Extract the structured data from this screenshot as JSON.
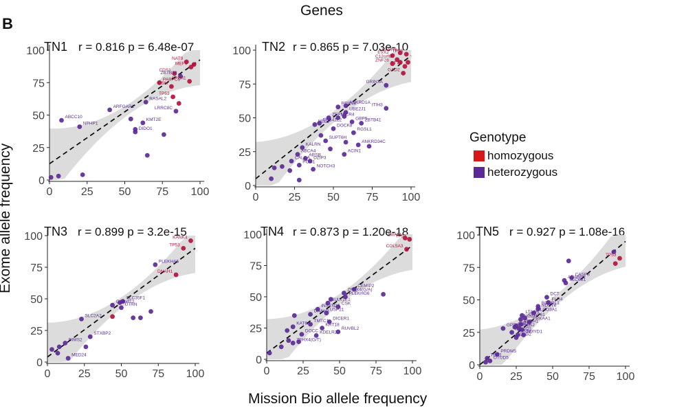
{
  "figure": {
    "panel_letter": "B",
    "title": "Genes",
    "xlabel": "Mission Bio allele frequency",
    "ylabel": "Exome allele frequency",
    "legend": {
      "title": "Genotype",
      "items": [
        {
          "label": "homozygous",
          "color": "#d7191c"
        },
        {
          "label": "heterozygous",
          "color": "#5b2a96"
        }
      ]
    },
    "colors": {
      "homozygous": "#b3123c",
      "heterozygous": "#5b2a96",
      "band": "#d6d6d6",
      "trend": "#111111"
    }
  },
  "chart_data": [
    {
      "type": "scatter",
      "name": "TN1",
      "stats": "r = 0.816 p = 6.48e-07",
      "xlim": [
        0,
        100
      ],
      "ylim": [
        0,
        100
      ],
      "xticks": [
        "0",
        "25",
        "50",
        "75",
        "100"
      ],
      "yticks": [
        "0",
        "25",
        "50",
        "75",
        "100"
      ],
      "fit": {
        "intercept": 12.5,
        "slope": 0.8
      },
      "points": [
        {
          "x": 91,
          "y": 91,
          "g": "homo",
          "label": "NAT9"
        },
        {
          "x": 94,
          "y": 87,
          "g": "homo",
          "label": "MEFV"
        },
        {
          "x": 96,
          "y": 89,
          "g": "homo"
        },
        {
          "x": 83,
          "y": 82,
          "g": "homo",
          "label": "CDS1"
        },
        {
          "x": 87,
          "y": 80,
          "g": "het",
          "label": "ZBTB38"
        },
        {
          "x": 93,
          "y": 76,
          "g": "homo",
          "label": "AP1M1"
        },
        {
          "x": 73,
          "y": 75,
          "g": "homo",
          "label": "PABPC5"
        },
        {
          "x": 81,
          "y": 72,
          "g": "homo",
          "label": "OSM"
        },
        {
          "x": 82,
          "y": 64,
          "g": "homo",
          "label": "TP53"
        },
        {
          "x": 86,
          "y": 59,
          "g": "homo"
        },
        {
          "x": 84,
          "y": 53,
          "g": "het",
          "label": "LRRC8C"
        },
        {
          "x": 64,
          "y": 60,
          "g": "het",
          "label": "RASAL2"
        },
        {
          "x": 40,
          "y": 54,
          "g": "het",
          "label": "ARFGAP1"
        },
        {
          "x": 62,
          "y": 44,
          "g": "het",
          "label": "KMT2E"
        },
        {
          "x": 54,
          "y": 47,
          "g": "het"
        },
        {
          "x": 57,
          "y": 37,
          "g": "het",
          "label": "DIDO1"
        },
        {
          "x": 57,
          "y": 39,
          "g": "het"
        },
        {
          "x": 76,
          "y": 35,
          "g": "het"
        },
        {
          "x": 65,
          "y": 19,
          "g": "het"
        },
        {
          "x": 20,
          "y": 41,
          "g": "het",
          "label": "NPHP1"
        },
        {
          "x": 8,
          "y": 46,
          "g": "het",
          "label": "ABCC10"
        },
        {
          "x": 22,
          "y": 4,
          "g": "het"
        },
        {
          "x": 1,
          "y": 2,
          "g": "het"
        },
        {
          "x": 6,
          "y": 3,
          "g": "het"
        }
      ]
    },
    {
      "type": "scatter",
      "name": "TN2",
      "stats": "r = 0.865 p = 7.03e-10",
      "xlim": [
        0,
        100
      ],
      "ylim": [
        0,
        100
      ],
      "xticks": [
        "0",
        "25",
        "50",
        "75",
        "100"
      ],
      "yticks": [
        "0",
        "25",
        "50",
        "75",
        "100"
      ],
      "fit": {
        "intercept": 5,
        "slope": 0.91
      },
      "points": [
        {
          "x": 93,
          "y": 98,
          "g": "homo",
          "label": "CAPN6"
        },
        {
          "x": 97,
          "y": 97,
          "g": "homo",
          "label": "TP53"
        },
        {
          "x": 88,
          "y": 96,
          "g": "homo",
          "label": "EVX2"
        },
        {
          "x": 91,
          "y": 93,
          "g": "homo",
          "label": "C12orf66"
        },
        {
          "x": 98,
          "y": 91,
          "g": "homo"
        },
        {
          "x": 93,
          "y": 91,
          "g": "homo"
        },
        {
          "x": 88,
          "y": 90,
          "g": "homo",
          "label": "ZNF26"
        },
        {
          "x": 96,
          "y": 88,
          "g": "homo",
          "label": "RT73"
        },
        {
          "x": 95,
          "y": 83,
          "g": "homo",
          "label": "GAD2"
        },
        {
          "x": 84,
          "y": 74,
          "g": "het",
          "label": "GRIN3A"
        },
        {
          "x": 84,
          "y": 57,
          "g": "het",
          "label": "ITIH3"
        },
        {
          "x": 58,
          "y": 59,
          "g": "het",
          "label": "ANKRD1A"
        },
        {
          "x": 53,
          "y": 58,
          "g": "het",
          "label": "PTPN4"
        },
        {
          "x": 58,
          "y": 54,
          "g": "het",
          "label": "UBE2J1"
        },
        {
          "x": 57,
          "y": 51,
          "g": "het"
        },
        {
          "x": 53,
          "y": 50,
          "g": "het",
          "label": "IFCR4"
        },
        {
          "x": 47,
          "y": 50,
          "g": "het",
          "label": "ZFPM2"
        },
        {
          "x": 62,
          "y": 47,
          "g": "het",
          "label": "GBP5"
        },
        {
          "x": 68,
          "y": 46,
          "g": "het",
          "label": "ZBTB41"
        },
        {
          "x": 38,
          "y": 45,
          "g": "het",
          "label": "NLE1"
        },
        {
          "x": 41,
          "y": 46,
          "g": "het",
          "label": "EPB41L2"
        },
        {
          "x": 50,
          "y": 42,
          "g": "het",
          "label": "DOCK8"
        },
        {
          "x": 63,
          "y": 39,
          "g": "het",
          "label": "RGSL1"
        },
        {
          "x": 42,
          "y": 37,
          "g": "het"
        },
        {
          "x": 45,
          "y": 33,
          "g": "het",
          "label": "SUPT6H"
        },
        {
          "x": 58,
          "y": 32,
          "g": "het"
        },
        {
          "x": 66,
          "y": 30,
          "g": "het",
          "label": "ANKRD34C"
        },
        {
          "x": 73,
          "y": 29,
          "g": "het"
        },
        {
          "x": 48,
          "y": 27,
          "g": "het"
        },
        {
          "x": 57,
          "y": 23,
          "g": "het",
          "label": "ACIN1"
        },
        {
          "x": 30,
          "y": 28,
          "g": "het",
          "label": "KALRN"
        },
        {
          "x": 27,
          "y": 23,
          "g": "het",
          "label": "ABCA4"
        },
        {
          "x": 32,
          "y": 20,
          "g": "het",
          "label": "ARSB"
        },
        {
          "x": 35,
          "y": 18,
          "g": "het",
          "label": "DZIP3"
        },
        {
          "x": 23,
          "y": 18,
          "g": "het",
          "label": "CALCA"
        },
        {
          "x": 28,
          "y": 15,
          "g": "het",
          "label": "PCM1"
        },
        {
          "x": 37,
          "y": 12,
          "g": "het",
          "label": "NOTCH3"
        },
        {
          "x": 17,
          "y": 14,
          "g": "het"
        },
        {
          "x": 12,
          "y": 13,
          "g": "het"
        },
        {
          "x": 22,
          "y": 11,
          "g": "het"
        },
        {
          "x": 28,
          "y": 4,
          "g": "het"
        },
        {
          "x": 10,
          "y": 5,
          "g": "het"
        }
      ]
    },
    {
      "type": "scatter",
      "name": "TN3",
      "stats": "r = 0.899 p = 3.2e-15",
      "xlim": [
        0,
        100
      ],
      "ylim": [
        0,
        100
      ],
      "xticks": [
        "0",
        "25",
        "50",
        "75",
        "100"
      ],
      "yticks": [
        "0",
        "25",
        "50",
        "75",
        "100"
      ],
      "fit": {
        "intercept": 4,
        "slope": 0.86
      },
      "points": [
        {
          "x": 97,
          "y": 96,
          "g": "homo",
          "label": "KANK4"
        },
        {
          "x": 92,
          "y": 90,
          "g": "homo",
          "label": "TP53"
        },
        {
          "x": 73,
          "y": 77,
          "g": "het",
          "label": "PLEKHA6"
        },
        {
          "x": 87,
          "y": 69,
          "g": "homo",
          "label": "DNAH1"
        },
        {
          "x": 51,
          "y": 48,
          "g": "het",
          "label": "SLC35F1"
        },
        {
          "x": 49,
          "y": 47,
          "g": "het"
        },
        {
          "x": 44,
          "y": 45,
          "g": "het",
          "label": "C10orf12"
        },
        {
          "x": 50,
          "y": 43,
          "g": "het",
          "label": "UTRN"
        },
        {
          "x": 70,
          "y": 40,
          "g": "het"
        },
        {
          "x": 44,
          "y": 36,
          "g": "homo"
        },
        {
          "x": 58,
          "y": 35,
          "g": "het"
        },
        {
          "x": 63,
          "y": 35,
          "g": "het"
        },
        {
          "x": 23,
          "y": 34,
          "g": "het",
          "label": "SLC2A2"
        },
        {
          "x": 29,
          "y": 20,
          "g": "het",
          "label": "STXBP2"
        },
        {
          "x": 26,
          "y": 12,
          "g": "het"
        },
        {
          "x": 12,
          "y": 15,
          "g": "het",
          "label": "RIMS2"
        },
        {
          "x": 3,
          "y": 10,
          "g": "het"
        },
        {
          "x": 8,
          "y": 12,
          "g": "het"
        },
        {
          "x": 14,
          "y": 3,
          "g": "het",
          "label": "MED24"
        },
        {
          "x": 7,
          "y": 7,
          "g": "het"
        }
      ]
    },
    {
      "type": "scatter",
      "name": "TN4",
      "stats": "r = 0.873 p = 1.20e-18",
      "xlim": [
        0,
        100
      ],
      "ylim": [
        0,
        100
      ],
      "xticks": [
        "0",
        "25",
        "50",
        "75",
        "100"
      ],
      "yticks": [
        "0",
        "25",
        "50",
        "75",
        "100"
      ],
      "fit": {
        "intercept": 5,
        "slope": 0.86
      },
      "points": [
        {
          "x": 95,
          "y": 97,
          "g": "homo",
          "label": "ZMAT1"
        },
        {
          "x": 98,
          "y": 96,
          "g": "homo",
          "label": "TP53"
        },
        {
          "x": 96,
          "y": 88,
          "g": "homo",
          "label": "COL5A3"
        },
        {
          "x": 60,
          "y": 56,
          "g": "het",
          "label": "CEMIP2"
        },
        {
          "x": 80,
          "y": 52,
          "g": "het"
        },
        {
          "x": 53,
          "y": 53,
          "g": "het",
          "label": "ZFHX4(G/A)"
        },
        {
          "x": 54,
          "y": 50,
          "g": "het",
          "label": "PLEKHG6"
        },
        {
          "x": 44,
          "y": 48,
          "g": "het"
        },
        {
          "x": 42,
          "y": 45,
          "g": "het",
          "label": "SULT1E1"
        },
        {
          "x": 49,
          "y": 42,
          "g": "het",
          "label": "CSK"
        },
        {
          "x": 35,
          "y": 40,
          "g": "het",
          "label": "INSYN2A"
        },
        {
          "x": 41,
          "y": 37,
          "g": "het",
          "label": "USP21"
        },
        {
          "x": 30,
          "y": 36,
          "g": "het",
          "label": "DNAH3"
        },
        {
          "x": 19,
          "y": 35,
          "g": "het"
        },
        {
          "x": 43,
          "y": 30,
          "g": "het",
          "label": "DICER1"
        },
        {
          "x": 30,
          "y": 28,
          "g": "het",
          "label": "TMTC1"
        },
        {
          "x": 38,
          "y": 25,
          "g": "het",
          "label": "KRT18"
        },
        {
          "x": 49,
          "y": 22,
          "g": "het",
          "label": "RUVBL2"
        },
        {
          "x": 18,
          "y": 26,
          "g": "het",
          "label": "KAT6A"
        },
        {
          "x": 14,
          "y": 23,
          "g": "het"
        },
        {
          "x": 24,
          "y": 20,
          "g": "het",
          "label": "DOCC"
        },
        {
          "x": 34,
          "y": 19,
          "g": "het",
          "label": "KDELR2"
        },
        {
          "x": 15,
          "y": 15,
          "g": "het"
        },
        {
          "x": 18,
          "y": 13,
          "g": "het",
          "label": "ZFHX4(G/T)"
        },
        {
          "x": 22,
          "y": 14,
          "g": "het"
        },
        {
          "x": 10,
          "y": 10,
          "g": "het"
        },
        {
          "x": 2,
          "y": 5,
          "g": "het"
        }
      ]
    },
    {
      "type": "scatter",
      "name": "TN5",
      "stats": "r = 0.927 p = 1.08e-16",
      "xlim": [
        0,
        100
      ],
      "ylim": [
        0,
        100
      ],
      "xticks": [
        "0",
        "25",
        "50",
        "75",
        "100"
      ],
      "yticks": [
        "0",
        "25",
        "50",
        "75",
        "100"
      ],
      "fit": {
        "intercept": 0,
        "slope": 0.95
      },
      "points": [
        {
          "x": 96,
          "y": 82,
          "g": "homo",
          "label": "TP53"
        },
        {
          "x": 92,
          "y": 87,
          "g": "het"
        },
        {
          "x": 93,
          "y": 78,
          "g": "homo"
        },
        {
          "x": 61,
          "y": 80,
          "g": "het"
        },
        {
          "x": 63,
          "y": 67,
          "g": "het",
          "label": "CASP8"
        },
        {
          "x": 59,
          "y": 63,
          "g": "het",
          "label": "SLC6B1"
        },
        {
          "x": 58,
          "y": 65,
          "g": "het",
          "label": "ADARB2"
        },
        {
          "x": 46,
          "y": 52,
          "g": "het",
          "label": "DCT"
        },
        {
          "x": 47,
          "y": 48,
          "g": "het",
          "label": "FLR4"
        },
        {
          "x": 40,
          "y": 45,
          "g": "het",
          "label": "BCORL1"
        },
        {
          "x": 40,
          "y": 43,
          "g": "het",
          "label": "NDST4"
        },
        {
          "x": 37,
          "y": 40,
          "g": "het",
          "label": "SLCO3A1"
        },
        {
          "x": 29,
          "y": 38,
          "g": "het",
          "label": "LTA4H"
        },
        {
          "x": 31,
          "y": 36,
          "g": "het",
          "label": "CFAP61"
        },
        {
          "x": 28,
          "y": 35,
          "g": "het",
          "label": "NCDN"
        },
        {
          "x": 34,
          "y": 33,
          "g": "het",
          "label": "PRKAA1"
        },
        {
          "x": 28,
          "y": 31,
          "g": "het",
          "label": "PLCH1"
        },
        {
          "x": 25,
          "y": 30,
          "g": "het",
          "label": "IFIH1"
        },
        {
          "x": 24,
          "y": 29,
          "g": "het",
          "label": "GAD1"
        },
        {
          "x": 27,
          "y": 28,
          "g": "het",
          "label": "RGS2"
        },
        {
          "x": 29,
          "y": 27,
          "g": "het",
          "label": "ST"
        },
        {
          "x": 22,
          "y": 25,
          "g": "het",
          "label": "IQGAP1"
        },
        {
          "x": 26,
          "y": 23,
          "g": "het",
          "label": "TNN"
        },
        {
          "x": 30,
          "y": 23,
          "g": "het",
          "label": "SMYD1"
        },
        {
          "x": 25,
          "y": 21,
          "g": "het",
          "label": "DLG2"
        },
        {
          "x": 16,
          "y": 28,
          "g": "het",
          "label": "GPR158"
        },
        {
          "x": 12,
          "y": 8,
          "g": "het",
          "label": "PRDM5"
        },
        {
          "x": 5,
          "y": 5,
          "g": "het",
          "label": "TBC1"
        },
        {
          "x": 7,
          "y": 3,
          "g": "het",
          "label": "OTUD5"
        },
        {
          "x": 4,
          "y": 2,
          "g": "het"
        }
      ]
    }
  ]
}
